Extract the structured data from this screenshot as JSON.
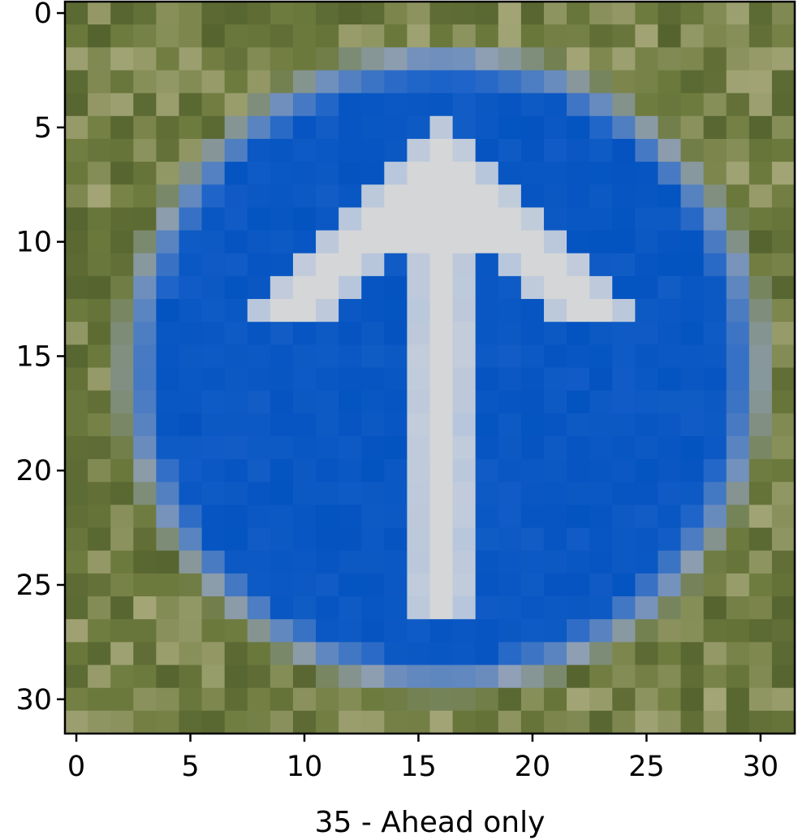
{
  "figure": {
    "xlabel": "35 - Ahead only",
    "x_ticks": [
      "0",
      "5",
      "10",
      "15",
      "20",
      "25",
      "30"
    ],
    "y_ticks": [
      "0",
      "5",
      "10",
      "15",
      "20",
      "25",
      "30"
    ],
    "image_grid": [
      32,
      32
    ],
    "extent": [
      -0.5,
      31.5
    ],
    "tick_values": [
      0,
      5,
      10,
      15,
      20,
      25,
      30
    ]
  },
  "image": {
    "content": "blue circular traffic sign with white upward arrow on green foliage background",
    "colors": {
      "sign_blue": "#0353c1",
      "sign_blue_light": "#1c63c9",
      "arrow_white": "#d4d6d8",
      "arrow_edge": "#b7c6dc",
      "foliage": "#6e7b3e",
      "foliage_dark": "#55632f",
      "foliage_light": "#a3a577",
      "ring": "#8fa0b8"
    }
  }
}
